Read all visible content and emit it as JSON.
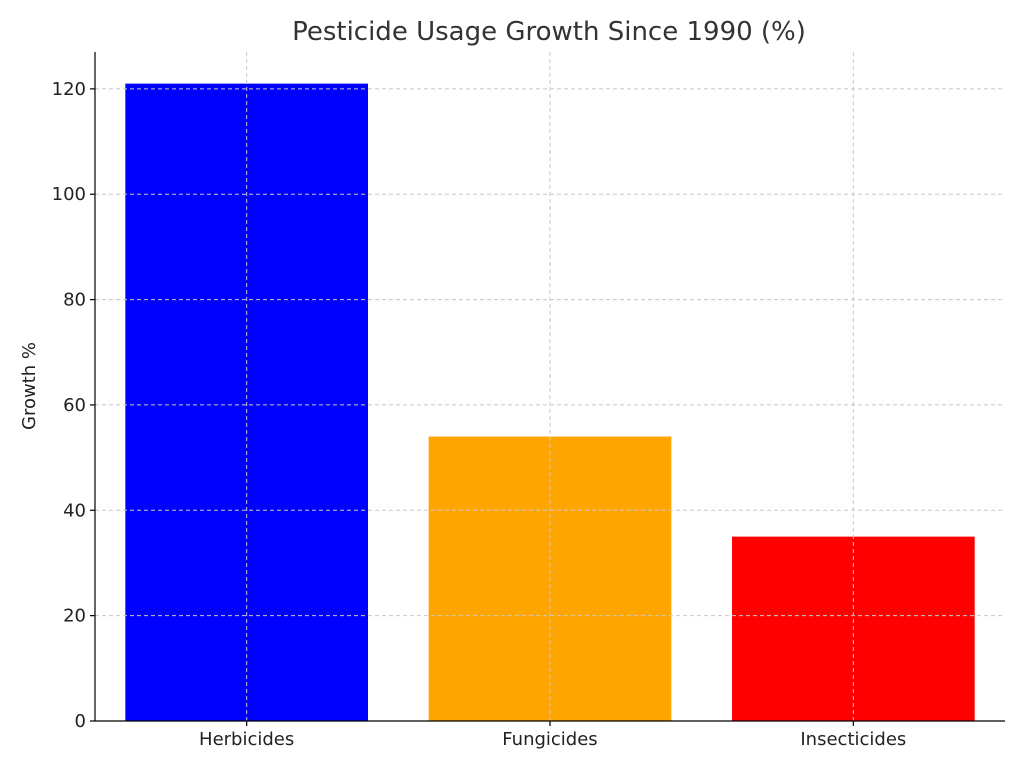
{
  "chart_data": {
    "type": "bar",
    "title": "Pesticide Usage Growth Since 1990 (%)",
    "xlabel": "",
    "ylabel": "Growth %",
    "categories": [
      "Herbicides",
      "Fungicides",
      "Insecticides"
    ],
    "values": [
      121,
      54,
      35
    ],
    "colors": [
      "#0000ff",
      "#ffa500",
      "#ff0000"
    ],
    "ylim": [
      0,
      127
    ],
    "yticks": [
      0,
      20,
      40,
      60,
      80,
      100,
      120
    ],
    "grid": true
  }
}
